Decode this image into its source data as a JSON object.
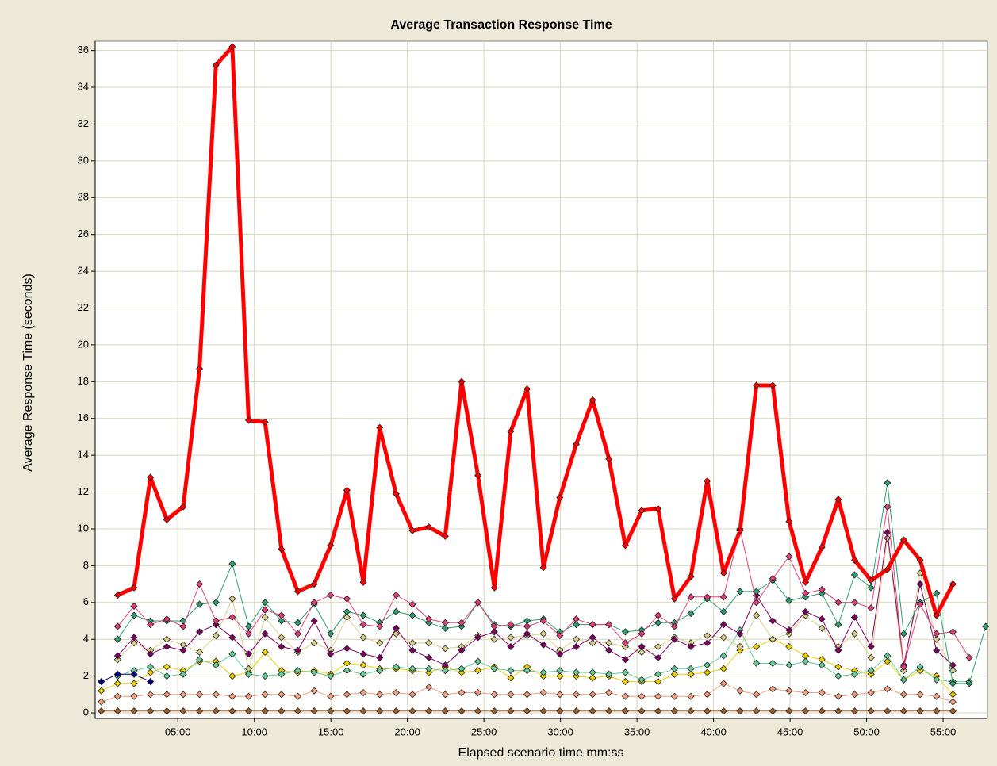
{
  "chart_data": {
    "type": "line",
    "title": "Average Transaction Response Time",
    "xlabel": "Elapsed scenario time mm:ss",
    "ylabel": "Average Response Time (seconds)",
    "xlim": [
      -0.4,
      57.9
    ],
    "ylim": [
      -0.3,
      36.5
    ],
    "xticks": [
      {
        "value": 5,
        "label": "05:00"
      },
      {
        "value": 10,
        "label": "10:00"
      },
      {
        "value": 15,
        "label": "15:00"
      },
      {
        "value": 20,
        "label": "20:00"
      },
      {
        "value": 25,
        "label": "25:00"
      },
      {
        "value": 30,
        "label": "30:00"
      },
      {
        "value": 35,
        "label": "35:00"
      },
      {
        "value": 40,
        "label": "40:00"
      },
      {
        "value": 45,
        "label": "45:00"
      },
      {
        "value": 50,
        "label": "50:00"
      },
      {
        "value": 55,
        "label": "55:00"
      }
    ],
    "yticks": [
      0,
      2,
      4,
      6,
      8,
      10,
      12,
      14,
      16,
      18,
      20,
      22,
      24,
      26,
      28,
      30,
      32,
      34,
      36
    ],
    "grid": true,
    "x": [
      0,
      1.07,
      2.14,
      3.21,
      4.28,
      5.35,
      6.42,
      7.49,
      8.56,
      9.63,
      10.7,
      11.77,
      12.84,
      13.91,
      14.98,
      16.05,
      17.12,
      18.19,
      19.26,
      20.33,
      21.4,
      22.47,
      23.54,
      24.61,
      25.68,
      26.75,
      27.82,
      28.89,
      29.96,
      31.03,
      32.1,
      33.17,
      34.24,
      35.31,
      36.38,
      37.45,
      38.52,
      39.59,
      40.66,
      41.73,
      42.8,
      43.87,
      44.94,
      46.01,
      47.08,
      48.15,
      49.22,
      50.29,
      51.36,
      52.43,
      53.5,
      54.57,
      55.64,
      56.71,
      57.78
    ],
    "series": [
      {
        "color": "#a0602a",
        "values": [
          0.1,
          0.1,
          0.1,
          0.1,
          0.1,
          0.1,
          0.1,
          0.1,
          0.1,
          0.1,
          0.1,
          0.1,
          0.1,
          0.1,
          0.1,
          0.1,
          0.1,
          0.1,
          0.1,
          0.1,
          0.1,
          0.1,
          0.1,
          0.1,
          0.1,
          0.1,
          0.1,
          0.1,
          0.1,
          0.1,
          0.1,
          0.1,
          0.1,
          0.1,
          0.1,
          0.1,
          0.1,
          0.1,
          0.1,
          0.1,
          0.1,
          0.1,
          0.1,
          0.1,
          0.1,
          0.1,
          0.1,
          0.1,
          0.1,
          0.1,
          0.1,
          0.1,
          0.1,
          null,
          null
        ]
      },
      {
        "color": "#f4a080",
        "values": [
          0.6,
          0.9,
          0.9,
          1.0,
          1.0,
          1.0,
          1.0,
          1.0,
          0.9,
          0.9,
          1.0,
          1.0,
          0.9,
          1.2,
          0.9,
          1.0,
          1.1,
          1.0,
          1.1,
          1.0,
          1.4,
          1.0,
          1.1,
          1.1,
          1.0,
          1.0,
          1.0,
          1.1,
          1.0,
          1.0,
          1.0,
          1.1,
          0.9,
          0.9,
          0.9,
          0.9,
          0.9,
          1.0,
          1.6,
          1.2,
          1.0,
          1.3,
          1.2,
          1.1,
          1.1,
          0.9,
          1.0,
          1.1,
          1.3,
          1.0,
          1.0,
          0.9,
          0.6,
          null,
          null
        ]
      },
      {
        "color": "#f0d000",
        "values": [
          1.2,
          1.6,
          1.6,
          2.2,
          2.5,
          2.3,
          2.8,
          2.8,
          2.0,
          2.2,
          3.3,
          2.3,
          2.2,
          2.3,
          2.1,
          2.7,
          2.6,
          2.4,
          2.4,
          2.3,
          2.2,
          2.5,
          2.2,
          2.3,
          2.5,
          1.9,
          2.5,
          2.0,
          2.0,
          2.0,
          1.9,
          2.0,
          1.7,
          1.7,
          1.7,
          2.1,
          2.1,
          2.2,
          2.4,
          3.4,
          3.6,
          4.0,
          3.6,
          3.1,
          2.9,
          2.5,
          2.3,
          2.1,
          2.8,
          1.8,
          2.3,
          2.0,
          1.0,
          null,
          null
        ]
      },
      {
        "color": "#66cc99",
        "values": [
          null,
          2.0,
          2.3,
          2.5,
          2.0,
          2.1,
          2.9,
          2.6,
          3.2,
          2.1,
          2.0,
          2.1,
          2.3,
          2.2,
          2.0,
          2.3,
          2.1,
          2.3,
          2.5,
          2.4,
          2.4,
          2.3,
          2.4,
          2.8,
          2.4,
          2.3,
          2.3,
          2.2,
          2.3,
          2.2,
          2.2,
          2.1,
          2.2,
          1.8,
          2.1,
          2.4,
          2.4,
          2.6,
          3.1,
          4.5,
          2.7,
          2.7,
          2.6,
          2.8,
          2.6,
          2.0,
          2.1,
          2.3,
          3.1,
          1.8,
          2.5,
          1.8,
          1.7,
          1.7,
          null
        ]
      },
      {
        "color": "#d8d08a",
        "values": [
          null,
          2.9,
          3.8,
          3.4,
          4.0,
          3.7,
          3.3,
          4.2,
          6.2,
          2.4,
          5.2,
          4.1,
          3.3,
          3.8,
          3.4,
          5.2,
          4.1,
          3.8,
          4.3,
          3.8,
          3.8,
          3.5,
          3.6,
          4.2,
          4.0,
          4.1,
          4.2,
          4.3,
          3.4,
          4.0,
          3.8,
          3.8,
          3.6,
          3.3,
          3.6,
          4.1,
          3.8,
          4.2,
          4.1,
          3.6,
          5.3,
          4.0,
          4.3,
          5.3,
          4.6,
          3.6,
          4.3,
          3.0,
          9.5,
          2.3,
          7.6,
          4.0,
          2.3,
          null,
          null
        ]
      },
      {
        "color": "#800060",
        "values": [
          null,
          3.1,
          4.1,
          3.2,
          3.6,
          3.4,
          4.4,
          4.8,
          4.1,
          3.2,
          4.3,
          3.6,
          3.4,
          5.0,
          3.2,
          3.5,
          3.2,
          3.0,
          4.6,
          3.4,
          3.0,
          2.6,
          3.4,
          4.1,
          4.4,
          3.6,
          4.3,
          3.7,
          3.2,
          3.6,
          4.1,
          3.4,
          2.9,
          3.6,
          3.0,
          4.0,
          3.6,
          3.8,
          4.8,
          4.3,
          6.4,
          5.0,
          4.5,
          5.5,
          5.1,
          3.4,
          5.2,
          3.6,
          9.8,
          2.6,
          7.0,
          3.4,
          2.6,
          null,
          null
        ]
      },
      {
        "color": "#2e9e6e",
        "values": [
          null,
          4.0,
          5.3,
          5.0,
          5.0,
          5.0,
          5.9,
          6.0,
          8.1,
          4.7,
          6.0,
          5.0,
          4.9,
          5.9,
          4.3,
          5.5,
          5.3,
          4.9,
          5.5,
          5.3,
          4.9,
          4.6,
          4.7,
          6.0,
          4.8,
          4.7,
          5.0,
          5.1,
          4.4,
          4.8,
          4.8,
          4.8,
          4.4,
          4.5,
          4.9,
          4.9,
          5.4,
          6.2,
          5.5,
          6.6,
          6.6,
          7.2,
          6.1,
          6.3,
          6.5,
          4.8,
          7.5,
          6.8,
          12.5,
          4.3,
          6.0,
          6.5,
          1.6,
          1.6,
          4.7
        ]
      },
      {
        "color": "#e0407a",
        "values": [
          null,
          4.7,
          5.8,
          4.8,
          5.1,
          4.7,
          7.0,
          5.0,
          5.2,
          4.3,
          5.6,
          5.3,
          4.3,
          6.0,
          6.4,
          6.2,
          4.8,
          4.7,
          6.4,
          5.9,
          5.1,
          4.9,
          4.9,
          6.0,
          4.7,
          4.8,
          4.7,
          5.0,
          4.2,
          5.1,
          4.8,
          4.8,
          3.8,
          4.3,
          5.3,
          4.7,
          6.3,
          6.3,
          6.3,
          10.0,
          6.0,
          7.3,
          8.5,
          6.5,
          6.7,
          6.0,
          6.0,
          5.7,
          11.2,
          2.5,
          5.9,
          4.3,
          4.4,
          3.0,
          null
        ]
      },
      {
        "color": "#000080",
        "x": [
          0,
          1.07,
          2.14,
          3.21
        ],
        "values": [
          1.7,
          2.1,
          2.1,
          1.7
        ]
      },
      {
        "color": "#ff0000",
        "width": 5,
        "values": [
          null,
          6.4,
          6.8,
          12.8,
          10.5,
          11.2,
          18.7,
          35.2,
          36.2,
          15.9,
          15.8,
          8.9,
          6.6,
          7.0,
          9.1,
          12.1,
          7.1,
          15.5,
          11.9,
          9.9,
          10.1,
          9.6,
          18.0,
          12.9,
          6.8,
          15.3,
          17.6,
          7.9,
          11.7,
          14.6,
          17.0,
          13.8,
          9.1,
          11.0,
          11.1,
          6.2,
          7.4,
          12.6,
          7.6,
          9.9,
          17.8,
          17.8,
          10.4,
          7.1,
          9.0,
          11.6,
          8.3,
          7.2,
          7.8,
          9.4,
          8.3,
          5.3,
          7.0,
          null,
          null
        ]
      }
    ]
  }
}
